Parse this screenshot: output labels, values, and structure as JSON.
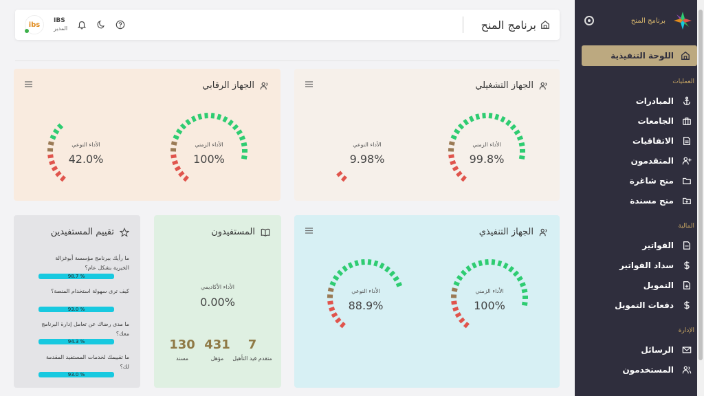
{
  "header": {
    "page_title": "برنامج المنح",
    "user_name": "IBS",
    "user_role": "المدير",
    "logo_text": "ibs"
  },
  "sidebar": {
    "brand_text": "برنامج المنح",
    "active_item": "اللوحة التنفيذية",
    "sections": [
      {
        "title": "العمليات",
        "items": [
          {
            "label": "المبادرات",
            "icon": "anchor-icon"
          },
          {
            "label": "الجامعات",
            "icon": "briefcase-icon"
          },
          {
            "label": "الاتفاقيات",
            "icon": "document-icon"
          },
          {
            "label": "المتقدمون",
            "icon": "user-plus-icon"
          },
          {
            "label": "منح شاغرة",
            "icon": "folder-icon"
          },
          {
            "label": "منح مسندة",
            "icon": "folder-plus-icon"
          }
        ]
      },
      {
        "title": "المالية",
        "items": [
          {
            "label": "الفواتير",
            "icon": "file-icon"
          },
          {
            "label": "سداد الفواتير",
            "icon": "dollar-icon"
          },
          {
            "label": "التمويل",
            "icon": "file-plus-icon"
          },
          {
            "label": "دفعات التمويل",
            "icon": "dollar-icon"
          }
        ]
      },
      {
        "title": "الإدارة",
        "items": [
          {
            "label": "الرسائل",
            "icon": "mail-icon"
          },
          {
            "label": "المستخدمون",
            "icon": "users-icon"
          }
        ]
      }
    ]
  },
  "cards": {
    "operational": {
      "title": "الجهاز التشغيلي",
      "gauges": [
        {
          "label": "الأداء الزمني",
          "value": "99.8%",
          "level": 0.998
        },
        {
          "label": "الأداء النوعي",
          "value": "9.98%",
          "level": 0.0998
        }
      ]
    },
    "supervisory": {
      "title": "الجهاز الرقابي",
      "gauges": [
        {
          "label": "الأداء الزمني",
          "value": "100%",
          "level": 1.0
        },
        {
          "label": "الأداء النوعي",
          "value": "42.0%",
          "level": 0.42
        }
      ]
    },
    "executive": {
      "title": "الجهاز التنفيذي",
      "gauges": [
        {
          "label": "الأداء الزمني",
          "value": "100%",
          "level": 1.0
        },
        {
          "label": "الأداء النوعي",
          "value": "88.9%",
          "level": 0.889
        }
      ]
    },
    "beneficiaries": {
      "title": "المستفيدون",
      "academic_label": "الأداء الأكاديمي",
      "academic_value": "0.00%",
      "stats": [
        {
          "value": "7",
          "label": "متقدم قيد التأهيل"
        },
        {
          "value": "431",
          "label": "مؤهل"
        },
        {
          "value": "130",
          "label": "مسند"
        }
      ]
    },
    "rating": {
      "title": "تقييم المستفيدين",
      "questions": [
        {
          "text": "ما رأيك ببرنامج مؤسسة أبوغزالة الخيرية بشكل عام؟",
          "value": "98.7 %"
        },
        {
          "text": "كيف ترى سهولة استخدام المنصة؟",
          "value": "93.0 %"
        },
        {
          "text": "ما مدى رضاك عن تعامل إدارة البرنامج معك؟",
          "value": "94.3 %"
        },
        {
          "text": "ما تقييمك لخدمات المستفيد المقدمة لك؟",
          "value": "93.0 %"
        }
      ]
    }
  },
  "colors": {
    "sidebar_bg": "#2f2e3d",
    "active_item_bg": "#bca980",
    "gauge_red": "#e0544c",
    "gauge_brown": "#9a7a55",
    "gauge_green": "#2ecc71",
    "rating_bar": "#17c9e0"
  }
}
